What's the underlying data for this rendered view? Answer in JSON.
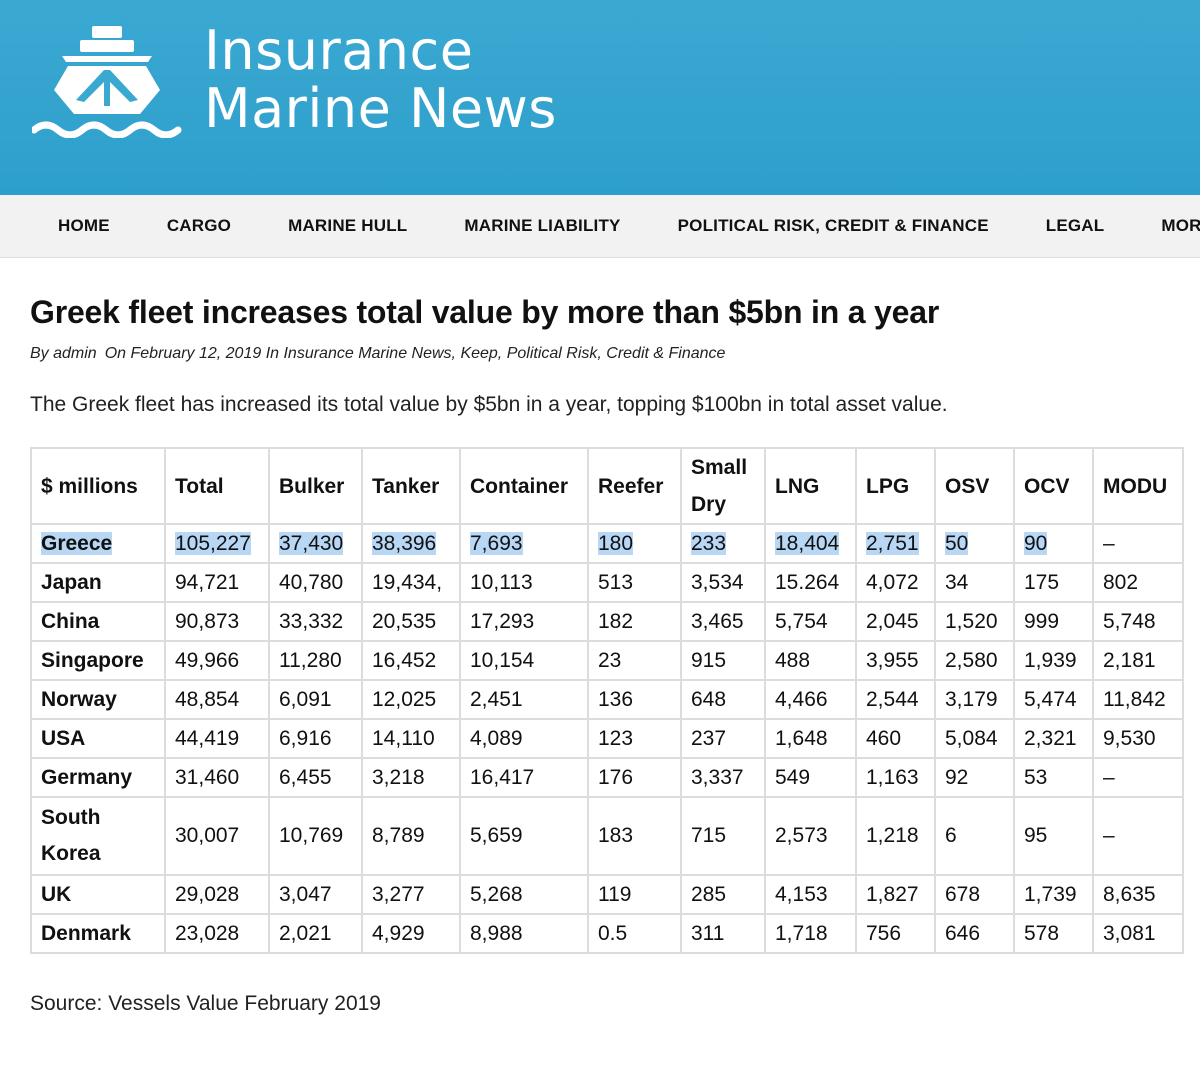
{
  "site": {
    "logo_line1": "Insurance",
    "logo_line2": "Marine News",
    "header_color": "#3aa9d2"
  },
  "nav": {
    "items": [
      "HOME",
      "CARGO",
      "MARINE HULL",
      "MARINE LIABILITY",
      "POLITICAL RISK, CREDIT & FINANCE",
      "LEGAL",
      "MORE"
    ]
  },
  "article": {
    "title": "Greek fleet increases total value by more than $5bn in a year",
    "meta_author": "By admin",
    "meta_rest": "On February 12, 2019 In Insurance Marine News, Keep, Political Risk, Credit & Finance",
    "lead": "The Greek fleet has increased its total value by $5bn in a year, topping $100bn in total asset value.",
    "source": "Source: Vessels Value February 2019"
  },
  "table": {
    "headers": [
      "$ millions",
      "Total",
      "Bulker",
      "Tanker",
      "Container",
      "Reefer",
      "Small Dry",
      "LNG",
      "LPG",
      "OSV",
      "OCV",
      "MODU"
    ],
    "rows": [
      [
        "Greece",
        "105,227",
        "37,430",
        "38,396",
        "7,693",
        "180",
        "233",
        "18,404",
        "2,751",
        "50",
        "90",
        "–"
      ],
      [
        "Japan",
        "94,721",
        "40,780",
        "19,434,",
        "10,113",
        "513",
        "3,534",
        "15.264",
        "4,072",
        "34",
        "175",
        "802"
      ],
      [
        "China",
        "90,873",
        "33,332",
        "20,535",
        "17,293",
        "182",
        "3,465",
        "5,754",
        "2,045",
        "1,520",
        "999",
        "5,748"
      ],
      [
        "Singapore",
        "49,966",
        "11,280",
        "16,452",
        "10,154",
        "23",
        "915",
        "488",
        "3,955",
        "2,580",
        "1,939",
        "2,181"
      ],
      [
        "Norway",
        "48,854",
        "6,091",
        "12,025",
        "2,451",
        "136",
        "648",
        "4,466",
        "2,544",
        "3,179",
        "5,474",
        "11,842"
      ],
      [
        "USA",
        "44,419",
        "6,916",
        "14,110",
        "4,089",
        "123",
        "237",
        "1,648",
        "460",
        "5,084",
        "2,321",
        "9,530"
      ],
      [
        "Germany",
        "31,460",
        "6,455",
        "3,218",
        "16,417",
        "176",
        "3,337",
        "549",
        "1,163",
        "92",
        "53",
        "–"
      ],
      [
        "South Korea",
        "30,007",
        "10,769",
        "8,789",
        "5,659",
        "183",
        "715",
        "2,573",
        "1,218",
        "6",
        "95",
        "–"
      ],
      [
        "UK",
        "29,028",
        "3,047",
        "3,277",
        "5,268",
        "119",
        "285",
        "4,153",
        "1,827",
        "678",
        "1,739",
        "8,635"
      ],
      [
        "Denmark",
        "23,028",
        "2,021",
        "4,929",
        "8,988",
        "0.5",
        "311",
        "1,718",
        "756",
        "646",
        "578",
        "3,081"
      ]
    ],
    "highlight_color": "#b8d7f5"
  }
}
